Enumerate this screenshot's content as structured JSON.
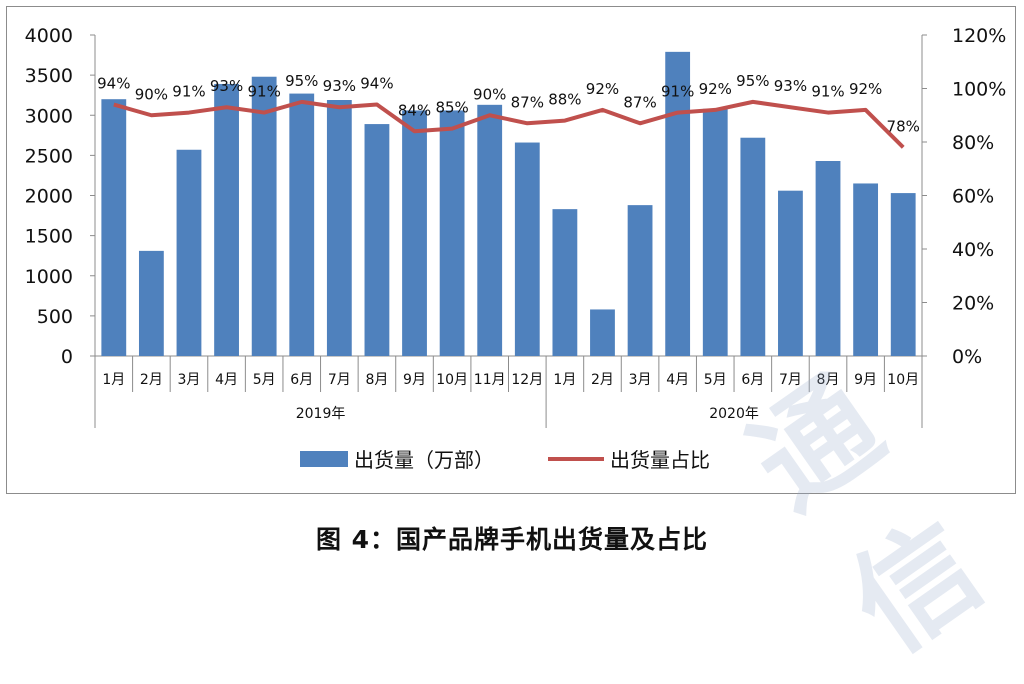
{
  "caption": "图 4：国产品牌手机出货量及占比",
  "chart_data": {
    "type": "bar",
    "title": "",
    "xlabel": "",
    "ylabel": "",
    "categories": [
      "1月",
      "2月",
      "3月",
      "4月",
      "5月",
      "6月",
      "7月",
      "8月",
      "9月",
      "10月",
      "11月",
      "12月",
      "1月",
      "2月",
      "3月",
      "4月",
      "5月",
      "6月",
      "7月",
      "8月",
      "9月",
      "10月"
    ],
    "groups": [
      {
        "label": "2019年",
        "count": 12
      },
      {
        "label": "2020年",
        "count": 10
      }
    ],
    "series": [
      {
        "name": "出货量（万部）",
        "type": "bar",
        "axis": "left",
        "color": "#4f81bd",
        "values": [
          3200,
          1310,
          2570,
          3390,
          3480,
          3270,
          3190,
          2890,
          3060,
          3060,
          3130,
          2660,
          1830,
          580,
          1880,
          3790,
          3080,
          2720,
          2060,
          2430,
          2150,
          2030
        ]
      },
      {
        "name": "出货量占比",
        "type": "line",
        "axis": "right",
        "color": "#c0504d",
        "values": [
          0.94,
          0.9,
          0.91,
          0.93,
          0.91,
          0.95,
          0.93,
          0.94,
          0.84,
          0.85,
          0.9,
          0.87,
          0.88,
          0.92,
          0.87,
          0.91,
          0.92,
          0.95,
          0.93,
          0.91,
          0.92,
          0.78
        ],
        "labels": [
          "94%",
          "90%",
          "91%",
          "93%",
          "91%",
          "95%",
          "93%",
          "94%",
          "84%",
          "85%",
          "90%",
          "87%",
          "88%",
          "92%",
          "87%",
          "91%",
          "92%",
          "95%",
          "93%",
          "91%",
          "92%",
          "78%"
        ]
      }
    ],
    "ylim": [
      0,
      4000
    ],
    "yticks": [
      "0",
      "500",
      "1000",
      "1500",
      "2000",
      "2500",
      "3000",
      "3500",
      "4000"
    ],
    "y2lim": [
      0,
      1.2
    ],
    "y2ticks": [
      "0%",
      "20%",
      "40%",
      "60%",
      "80%",
      "100%",
      "120%"
    ],
    "grid": false,
    "legend_position": "bottom"
  },
  "watermark": "通信"
}
